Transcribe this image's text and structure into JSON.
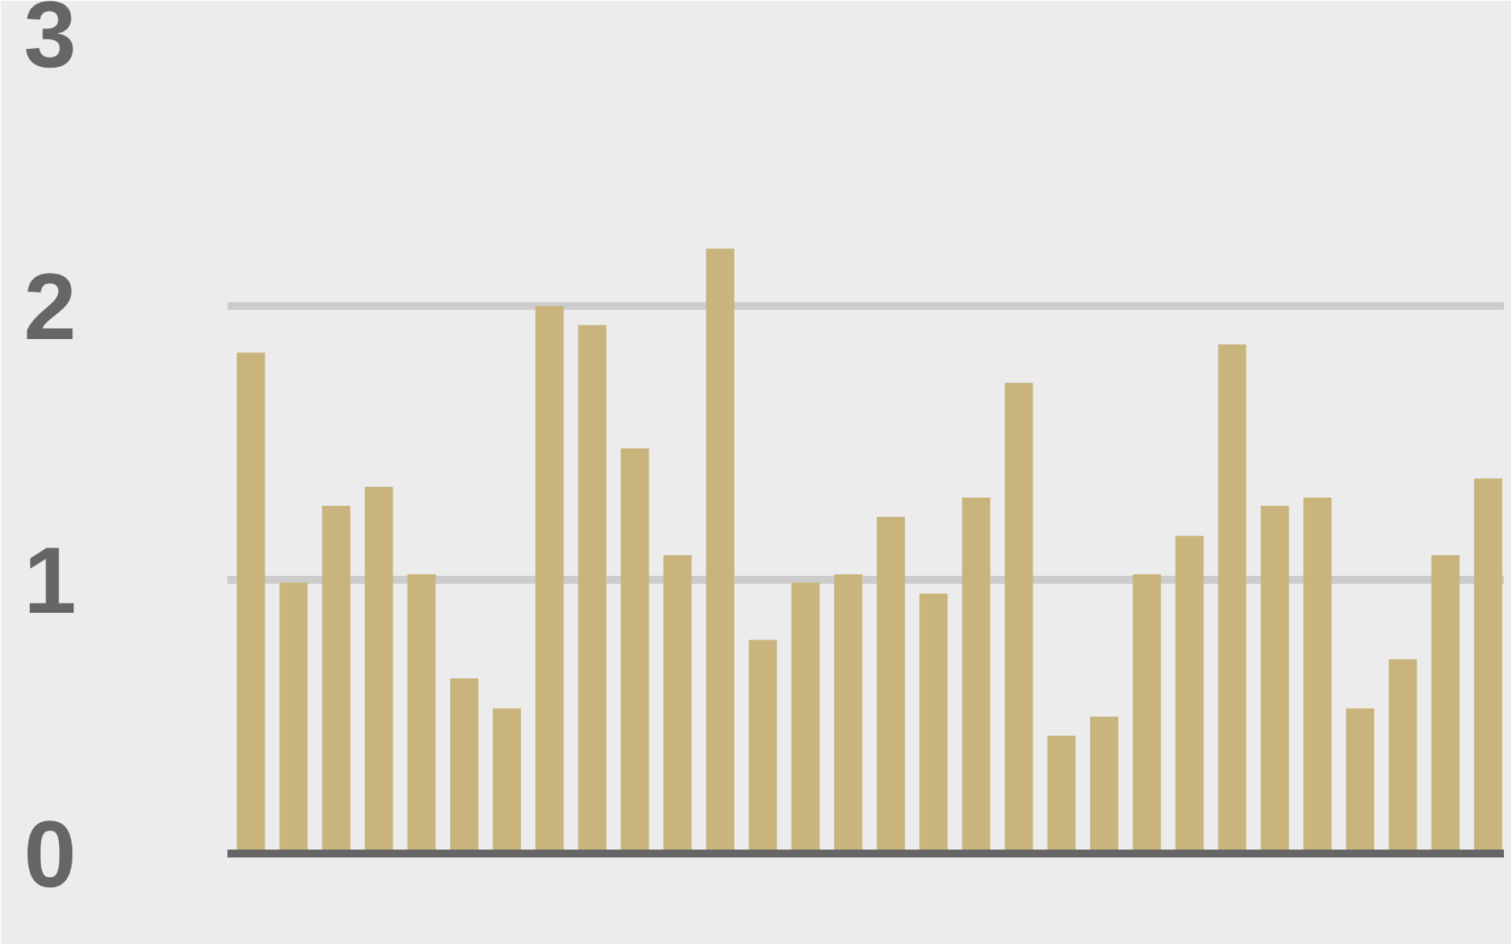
{
  "chart_data": {
    "type": "bar",
    "categories": [
      null,
      null,
      null,
      null,
      null,
      null,
      null,
      null,
      null,
      null,
      null,
      null,
      null,
      null,
      null,
      null,
      null,
      null,
      null,
      null,
      null,
      null,
      null,
      null,
      null,
      null,
      null,
      null,
      null,
      null
    ],
    "values": [
      1.83,
      0.99,
      1.27,
      1.34,
      1.02,
      0.64,
      0.53,
      2.0,
      1.93,
      1.48,
      1.09,
      2.21,
      0.78,
      0.99,
      1.02,
      1.23,
      0.95,
      1.3,
      1.72,
      0.43,
      0.5,
      1.02,
      1.16,
      1.86,
      1.27,
      1.3,
      0.53,
      0.71,
      1.09,
      1.37
    ],
    "color": "#c8b47c",
    "ylim": [
      0,
      3
    ],
    "yticks": [
      0,
      1,
      2,
      3
    ],
    "grid": "y",
    "tick_labels": "y"
  }
}
